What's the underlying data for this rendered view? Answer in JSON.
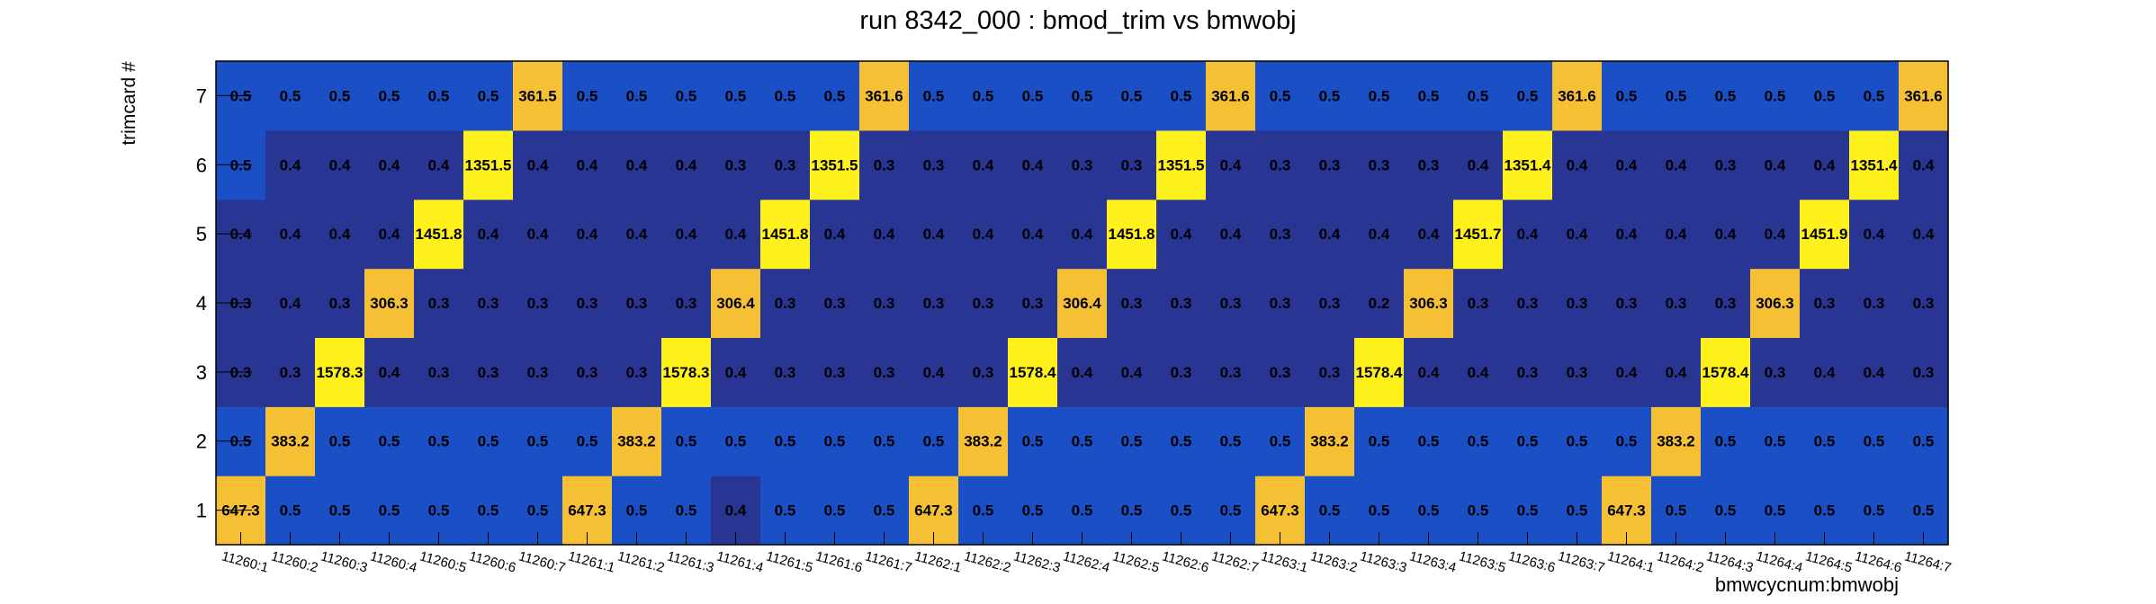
{
  "chart_data": {
    "type": "heatmap",
    "title": "run 8342_000 : bmod_trim vs bmwobj",
    "xlabel": "bmwcycnum:bmwobj",
    "ylabel": "trimcard #",
    "x_categories": [
      "11260:1",
      "11260:2",
      "11260:3",
      "11260:4",
      "11260:5",
      "11260:6",
      "11260:7",
      "11261:1",
      "11261:2",
      "11261:3",
      "11261:4",
      "11261:5",
      "11261:6",
      "11261:7",
      "11262:1",
      "11262:2",
      "11262:3",
      "11262:4",
      "11262:5",
      "11262:6",
      "11262:7",
      "11263:1",
      "11263:2",
      "11263:3",
      "11263:4",
      "11263:5",
      "11263:6",
      "11263:7",
      "11264:1",
      "11264:2",
      "11264:3",
      "11264:4",
      "11264:5",
      "11264:6",
      "11264:7"
    ],
    "y_categories": [
      "1",
      "2",
      "3",
      "4",
      "5",
      "6",
      "7"
    ],
    "values": [
      [
        "647.3",
        "0.5",
        "0.5",
        "0.5",
        "0.5",
        "0.5",
        "0.5",
        "647.3",
        "0.5",
        "0.5",
        "0.4",
        "0.5",
        "0.5",
        "0.5",
        "647.3",
        "0.5",
        "0.5",
        "0.5",
        "0.5",
        "0.5",
        "0.5",
        "647.3",
        "0.5",
        "0.5",
        "0.5",
        "0.5",
        "0.5",
        "0.5",
        "647.3",
        "0.5",
        "0.5",
        "0.5",
        "0.5",
        "0.5",
        "0.5"
      ],
      [
        "0.5",
        "383.2",
        "0.5",
        "0.5",
        "0.5",
        "0.5",
        "0.5",
        "0.5",
        "383.2",
        "0.5",
        "0.5",
        "0.5",
        "0.5",
        "0.5",
        "0.5",
        "383.2",
        "0.5",
        "0.5",
        "0.5",
        "0.5",
        "0.5",
        "0.5",
        "383.2",
        "0.5",
        "0.5",
        "0.5",
        "0.5",
        "0.5",
        "0.5",
        "383.2",
        "0.5",
        "0.5",
        "0.5",
        "0.5",
        "0.5"
      ],
      [
        "0.3",
        "0.3",
        "1578.3",
        "0.4",
        "0.3",
        "0.3",
        "0.3",
        "0.3",
        "0.3",
        "1578.3",
        "0.4",
        "0.3",
        "0.3",
        "0.3",
        "0.4",
        "0.3",
        "1578.4",
        "0.4",
        "0.4",
        "0.3",
        "0.3",
        "0.3",
        "0.3",
        "1578.4",
        "0.4",
        "0.4",
        "0.3",
        "0.3",
        "0.4",
        "0.4",
        "1578.4",
        "0.3",
        "0.4",
        "0.4",
        "0.3"
      ],
      [
        "0.3",
        "0.4",
        "0.3",
        "306.3",
        "0.3",
        "0.3",
        "0.3",
        "0.3",
        "0.3",
        "0.3",
        "306.4",
        "0.3",
        "0.3",
        "0.3",
        "0.3",
        "0.3",
        "0.3",
        "306.4",
        "0.3",
        "0.3",
        "0.3",
        "0.3",
        "0.3",
        "0.2",
        "306.3",
        "0.3",
        "0.3",
        "0.3",
        "0.3",
        "0.3",
        "0.3",
        "306.3",
        "0.3",
        "0.3",
        "0.3"
      ],
      [
        "0.4",
        "0.4",
        "0.4",
        "0.4",
        "1451.8",
        "0.4",
        "0.4",
        "0.4",
        "0.4",
        "0.4",
        "0.4",
        "1451.8",
        "0.4",
        "0.4",
        "0.4",
        "0.4",
        "0.4",
        "0.4",
        "1451.8",
        "0.4",
        "0.4",
        "0.3",
        "0.4",
        "0.4",
        "0.4",
        "1451.7",
        "0.4",
        "0.4",
        "0.4",
        "0.4",
        "0.4",
        "0.4",
        "1451.9",
        "0.4",
        "0.4"
      ],
      [
        "0.5",
        "0.4",
        "0.4",
        "0.4",
        "0.4",
        "1351.5",
        "0.4",
        "0.4",
        "0.4",
        "0.4",
        "0.3",
        "0.3",
        "1351.5",
        "0.3",
        "0.3",
        "0.4",
        "0.4",
        "0.3",
        "0.3",
        "1351.5",
        "0.4",
        "0.3",
        "0.3",
        "0.3",
        "0.3",
        "0.4",
        "1351.4",
        "0.4",
        "0.4",
        "0.4",
        "0.3",
        "0.4",
        "0.4",
        "1351.4",
        "0.4"
      ],
      [
        "0.5",
        "0.5",
        "0.5",
        "0.5",
        "0.5",
        "0.5",
        "361.5",
        "0.5",
        "0.5",
        "0.5",
        "0.5",
        "0.5",
        "0.5",
        "361.6",
        "0.5",
        "0.5",
        "0.5",
        "0.5",
        "0.5",
        "0.5",
        "361.6",
        "0.5",
        "0.5",
        "0.5",
        "0.5",
        "0.5",
        "0.5",
        "361.6",
        "0.5",
        "0.5",
        "0.5",
        "0.5",
        "0.5",
        "0.5",
        "361.6"
      ]
    ],
    "colors": {
      "low": "#283593",
      "mid": "#1a4fc6",
      "large": "#f5c034",
      "peak": "#fff11c",
      "text": "#000000"
    },
    "legend": "none",
    "grid": false
  }
}
